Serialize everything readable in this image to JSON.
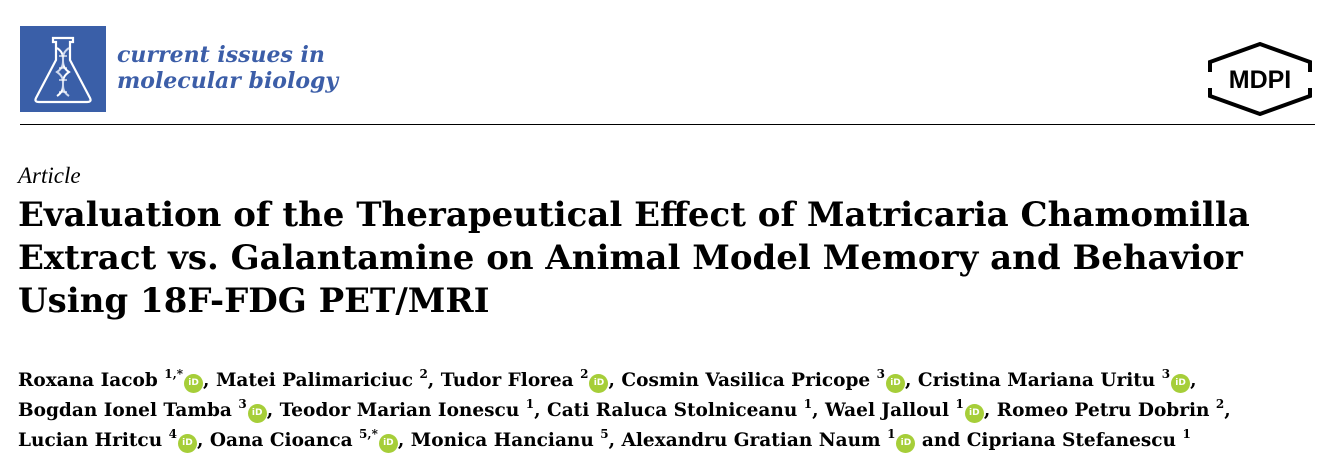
{
  "journal": {
    "name_line1": "current issues in",
    "name_line2": "molecular biology"
  },
  "publisher": {
    "logo_text": "MDPI"
  },
  "article": {
    "type": "Article",
    "title_lines": [
      "Evaluation of the Therapeutical Effect of Matricaria Chamomilla",
      "Extract vs. Galantamine on Animal Model Memory and Behavior",
      "Using 18F-FDG PET/MRI"
    ]
  },
  "authors": {
    "lines": [
      [
        {
          "name": "Roxana Iacob",
          "aff": "1,*",
          "orcid": true,
          "sep": ", "
        },
        {
          "name": "Matei Palimariciuc",
          "aff": "2",
          "orcid": false,
          "sep": ", "
        },
        {
          "name": "Tudor Florea",
          "aff": "2",
          "orcid": true,
          "sep": ", "
        },
        {
          "name": "Cosmin Vasilica Pricope",
          "aff": "3",
          "orcid": true,
          "sep": ", "
        },
        {
          "name": "Cristina Mariana Uritu",
          "aff": "3",
          "orcid": true,
          "sep": ","
        }
      ],
      [
        {
          "name": "Bogdan Ionel Tamba",
          "aff": "3",
          "orcid": true,
          "sep": ", "
        },
        {
          "name": "Teodor Marian Ionescu",
          "aff": "1",
          "orcid": false,
          "sep": ", "
        },
        {
          "name": "Cati Raluca Stolniceanu",
          "aff": "1",
          "orcid": false,
          "sep": ", "
        },
        {
          "name": "Wael Jalloul",
          "aff": "1",
          "orcid": true,
          "sep": ", "
        },
        {
          "name": "Romeo Petru Dobrin",
          "aff": "2",
          "orcid": false,
          "sep": ","
        }
      ],
      [
        {
          "name": "Lucian Hritcu",
          "aff": "4",
          "orcid": true,
          "sep": ", "
        },
        {
          "name": "Oana Cioanca",
          "aff": "5,*",
          "orcid": true,
          "sep": ", "
        },
        {
          "name": "Monica Hancianu",
          "aff": "5",
          "orcid": false,
          "sep": ", "
        },
        {
          "name": "Alexandru Gratian Naum",
          "aff": "1",
          "orcid": true,
          "sep": " and "
        },
        {
          "name": "Cipriana Stefanescu",
          "aff": "1",
          "orcid": false,
          "sep": ""
        }
      ]
    ],
    "orcid_glyph": "iD"
  },
  "colors": {
    "journal_blue": "#3c5ea8",
    "logo_blue": "#3a5fa8",
    "orcid_green": "#a6ce39"
  }
}
